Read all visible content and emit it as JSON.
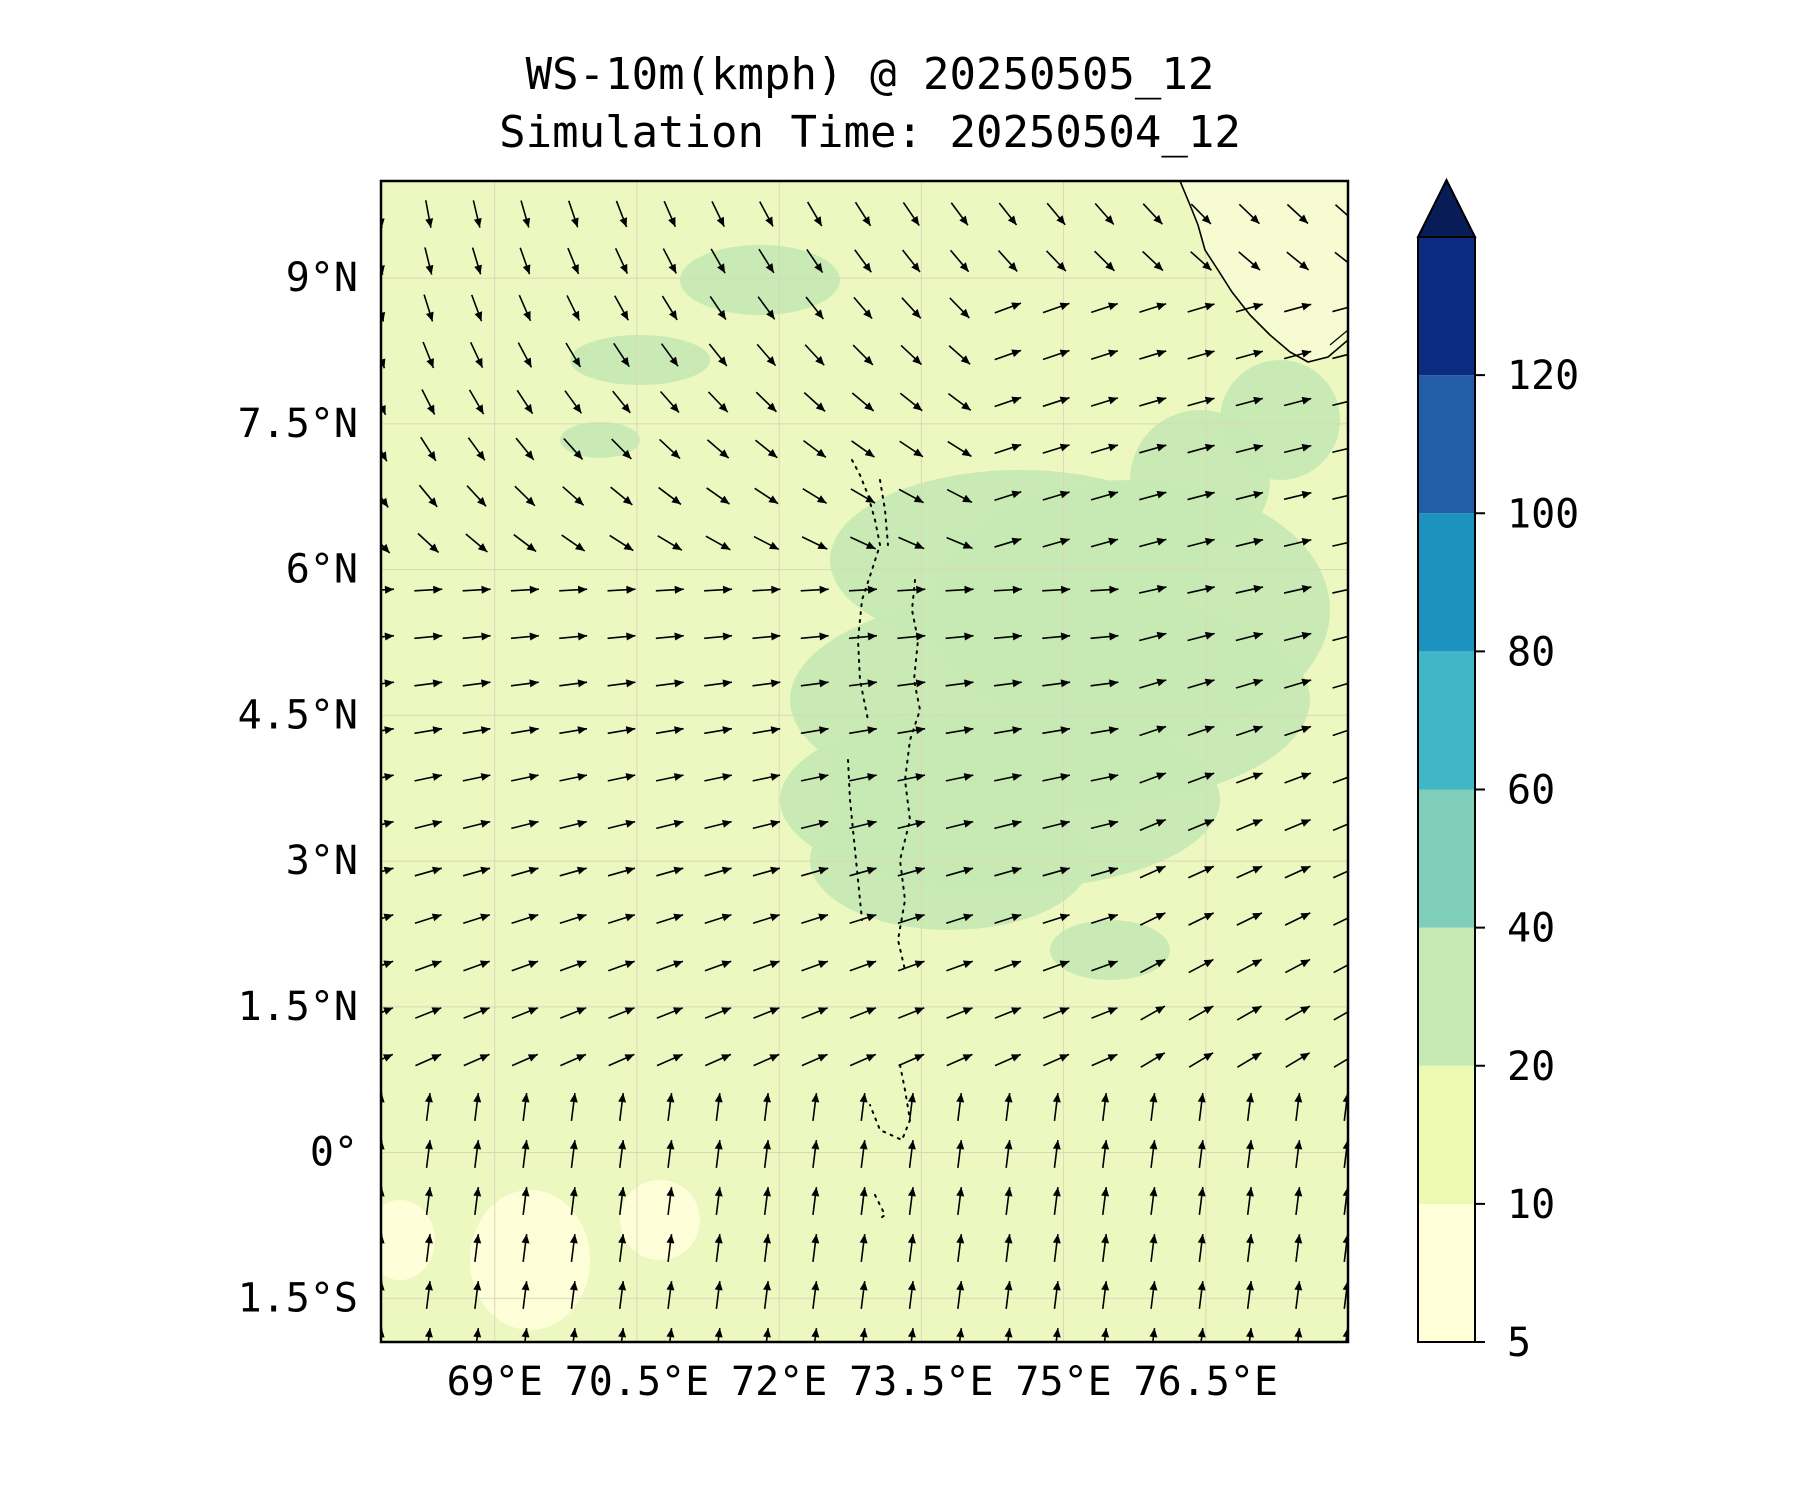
{
  "title": {
    "line1": "WS-10m(kmph) @ 20250505_12",
    "line2": "Simulation Time: 20250504_12"
  },
  "map": {
    "lon_range": [
      67.8,
      78.0
    ],
    "lat_range": [
      -1.95,
      10.0
    ],
    "lat_ticks": [
      {
        "value": 9.0,
        "label": "9°N"
      },
      {
        "value": 7.5,
        "label": "7.5°N"
      },
      {
        "value": 6.0,
        "label": "6°N"
      },
      {
        "value": 4.5,
        "label": "4.5°N"
      },
      {
        "value": 3.0,
        "label": "3°N"
      },
      {
        "value": 1.5,
        "label": "1.5°N"
      },
      {
        "value": 0.0,
        "label": "0°"
      },
      {
        "value": -1.5,
        "label": "1.5°S"
      }
    ],
    "lon_ticks": [
      {
        "value": 69.0,
        "label": "69°E"
      },
      {
        "value": 70.5,
        "label": "70.5°E"
      },
      {
        "value": 72.0,
        "label": "72°E"
      },
      {
        "value": 73.5,
        "label": "73.5°E"
      },
      {
        "value": 75.0,
        "label": "75°E"
      },
      {
        "value": 76.5,
        "label": "76.5°E"
      }
    ],
    "gridlines": true,
    "background_color": "#edf8c0"
  },
  "colorbar": {
    "levels": [
      5,
      10,
      20,
      40,
      60,
      80,
      100,
      120
    ],
    "labels": [
      "5",
      "10",
      "20",
      "40",
      "60",
      "80",
      "100",
      "120"
    ],
    "colors": [
      "#ffffd9",
      "#edf8b1",
      "#c7e9b4",
      "#7fcdbb",
      "#41b6c4",
      "#1d91c0",
      "#225ea8",
      "#0c2c84"
    ],
    "extend_color": "#081d58",
    "extend": "max"
  }
}
